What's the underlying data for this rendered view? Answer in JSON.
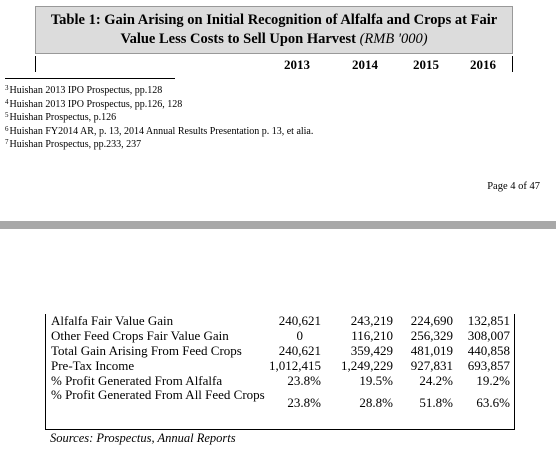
{
  "table_title": {
    "line1": "Table 1: Gain Arising on Initial Recognition of Alfalfa and Crops at Fair",
    "line2": "Value Less Costs to Sell Upon Harvest",
    "unit": "(RMB '000)"
  },
  "years": [
    "2013",
    "2014",
    "2015",
    "2016"
  ],
  "footnotes": [
    {
      "num": "3",
      "text": "Huishan 2013 IPO Prospectus, pp.128"
    },
    {
      "num": "4",
      "text": "Huishan 2013 IPO Prospectus, pp.126, 128"
    },
    {
      "num": "5",
      "text": "Huishan Prospectus, p.126"
    },
    {
      "num": "6",
      "text": "Huishan FY2014 AR, p. 13, 2014 Annual Results Presentation p. 13, et alia."
    },
    {
      "num": "7",
      "text": "Huishan Prospectus, pp.233, 237"
    }
  ],
  "page_number": "Page 4 of 47",
  "rows": [
    {
      "label": "Alfalfa Fair Value Gain",
      "values": [
        "240,621",
        "243,219",
        "224,690",
        "132,851"
      ]
    },
    {
      "label": "Other Feed Crops Fair Value Gain",
      "values": [
        "0",
        "116,210",
        "256,329",
        "308,007"
      ]
    },
    {
      "label": "Total Gain Arising From Feed Crops",
      "values": [
        "240,621",
        "359,429",
        "481,019",
        "440,858"
      ]
    },
    {
      "label": "Pre-Tax Income",
      "values": [
        "1,012,415",
        "1,249,229",
        "927,831",
        "693,857"
      ]
    },
    {
      "label": "% Profit Generated From Alfalfa",
      "values": [
        "23.8%",
        "19.5%",
        "24.2%",
        "19.2%"
      ]
    },
    {
      "label": "% Profit Generated From All Feed Crops",
      "values": [
        "23.8%",
        "28.8%",
        "51.8%",
        "63.6%"
      ]
    }
  ],
  "sources": "Sources: Prospectus, Annual Reports"
}
